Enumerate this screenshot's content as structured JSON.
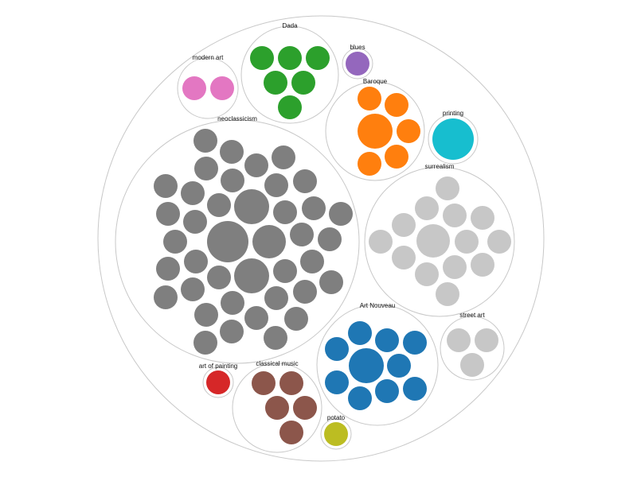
{
  "chart_data": {
    "type": "packed-bubble",
    "title": "",
    "groups": [
      {
        "label": "neoclassicism",
        "color": "#7f7f7f",
        "members": 46
      },
      {
        "label": "surrealism",
        "color": "#c7c7c7",
        "members": 15
      },
      {
        "label": "Art Nouveau",
        "color": "#1f77b4",
        "members": 12
      },
      {
        "label": "Baroque",
        "color": "#ff7f0e",
        "members": 7
      },
      {
        "label": "Dada",
        "color": "#2ca02c",
        "members": 6
      },
      {
        "label": "classical music",
        "color": "#8c564b",
        "members": 5
      },
      {
        "label": "street art",
        "color": "#c7c7c7",
        "members": 3
      },
      {
        "label": "modern art",
        "color": "#e377c2",
        "members": 2
      },
      {
        "label": "printing",
        "color": "#17becf",
        "members": 1
      },
      {
        "label": "blues",
        "color": "#9467bd",
        "members": 1
      },
      {
        "label": "art of painting",
        "color": "#d62728",
        "members": 1
      },
      {
        "label": "potato",
        "color": "#bcbd22",
        "members": 1
      }
    ]
  }
}
